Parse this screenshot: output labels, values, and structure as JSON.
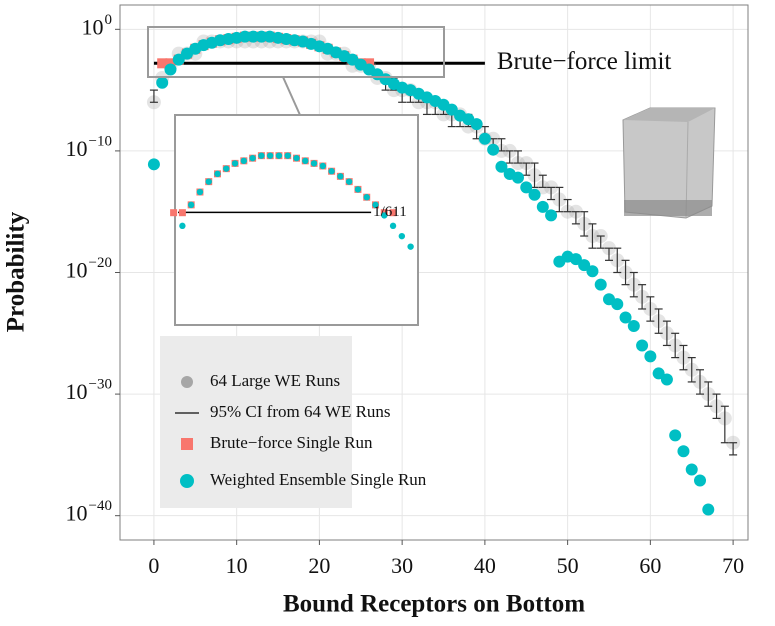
{
  "chart_data": [
    {
      "type": "scatter",
      "xlabel": "Bound Receptors on Bottom",
      "ylabel": "Probability",
      "log_y": true,
      "grid": true,
      "legend": "bottom-left",
      "xlim": [
        -4.1,
        71.8
      ],
      "ylim": [
        1e-42,
        100
      ],
      "xticks": [
        0,
        10,
        20,
        30,
        40,
        50,
        60,
        70
      ],
      "yticks": [
        {
          "value": 1,
          "label": "10",
          "sup": "0"
        },
        {
          "value": 1e-10,
          "label": "10",
          "sup": "−10"
        },
        {
          "value": 1e-20,
          "label": "10",
          "sup": "−20"
        },
        {
          "value": 1e-30,
          "label": "10",
          "sup": "−30"
        },
        {
          "value": 1e-40,
          "label": "10",
          "sup": "−40"
        }
      ],
      "series": [
        {
          "name": "64 Large WE Runs",
          "kind": "cloud",
          "color": "#a6a6a6",
          "x": [
            0,
            1,
            2,
            3,
            4,
            5,
            6,
            7,
            8,
            9,
            10,
            11,
            12,
            13,
            14,
            15,
            16,
            17,
            18,
            19,
            20,
            21,
            22,
            23,
            24,
            25,
            26,
            27,
            28,
            29,
            30,
            31,
            32,
            33,
            34,
            35,
            36,
            37,
            38,
            39,
            40,
            41,
            42,
            43,
            44,
            45,
            46,
            47,
            48,
            49,
            50,
            51,
            52,
            53,
            54,
            55,
            56,
            57,
            58,
            59,
            60,
            61,
            62,
            63,
            64,
            65,
            66,
            67,
            68,
            69,
            70
          ],
          "values": [
            1e-06,
            0.0001,
            0.001,
            0.01,
            0.01,
            0.01,
            0.1,
            0.1,
            0.1,
            0.1,
            0.1,
            0.1,
            0.1,
            0.1,
            0.1,
            0.1,
            0.1,
            0.1,
            0.1,
            0.1,
            0.1,
            0.01,
            0.01,
            0.01,
            0.001,
            0.001,
            0.001,
            0.0001,
            0.0001,
            1e-05,
            1e-05,
            1e-05,
            1e-06,
            1e-06,
            1e-06,
            1e-07,
            1e-07,
            1e-07,
            1e-08,
            1e-08,
            1e-09,
            1e-09,
            1e-10,
            1e-10,
            1e-11,
            1e-11,
            1e-12,
            1e-13,
            1e-13,
            1e-14,
            1e-15,
            1e-15,
            1e-16,
            1e-17,
            1e-17,
            1e-18,
            1e-19,
            1e-20,
            1e-21,
            1e-22,
            1e-23,
            1e-24,
            1e-25,
            1e-26,
            1e-27,
            1e-28,
            1e-29,
            1e-30,
            1e-31,
            1e-32,
            1e-34
          ]
        },
        {
          "name": "95% CI from 64 WE Runs",
          "kind": "errorbar",
          "color": "#333333",
          "x": [
            0,
            28,
            29,
            30,
            31,
            32,
            33,
            34,
            35,
            36,
            37,
            38,
            39,
            40,
            41,
            42,
            43,
            44,
            45,
            46,
            47,
            48,
            49,
            50,
            51,
            52,
            53,
            54,
            55,
            56,
            57,
            58,
            59,
            60,
            61,
            62,
            63,
            64,
            65,
            66,
            67,
            68,
            69,
            70
          ],
          "low": [
            1e-06,
            1e-05,
            1e-05,
            1e-06,
            1e-06,
            1e-06,
            1e-07,
            1e-07,
            1e-07,
            1e-08,
            1e-08,
            1e-08,
            1e-09,
            1e-09,
            1e-10,
            1e-10,
            1e-11,
            1e-11,
            1e-12,
            1e-13,
            1e-13,
            1e-14,
            1e-15,
            1e-15,
            1e-16,
            1e-17,
            1e-18,
            1e-18,
            1e-19,
            1e-20,
            1e-21,
            1e-22,
            1e-23,
            1e-24,
            1e-25,
            1e-26,
            1e-27,
            1e-28,
            1e-29,
            1e-30,
            1e-31,
            1e-32,
            1e-34,
            1e-35
          ],
          "high": [
            1e-05,
            0.0001,
            0.0001,
            1e-05,
            1e-05,
            1e-05,
            1e-06,
            1e-06,
            1e-06,
            1e-07,
            1e-07,
            1e-07,
            1e-08,
            1e-08,
            1e-09,
            1e-09,
            1e-10,
            1e-10,
            1e-11,
            1e-11,
            1e-12,
            1e-13,
            1e-13,
            1e-14,
            1e-15,
            1e-15,
            1e-16,
            1e-17,
            1e-18,
            1e-18,
            1e-19,
            1e-20,
            1e-21,
            1e-22,
            1e-23,
            1e-24,
            1e-25,
            1e-26,
            1e-27,
            1e-28,
            1e-29,
            1e-30,
            1e-31,
            1e-34
          ]
        },
        {
          "name": "Brute−force Single Run",
          "kind": "square",
          "color": "#f8766d",
          "x": [
            1,
            2,
            3,
            4,
            5,
            6,
            7,
            8,
            9,
            10,
            11,
            12,
            13,
            14,
            15,
            16,
            17,
            18,
            19,
            20,
            21,
            22,
            23,
            24,
            25,
            26
          ],
          "values": [
            0.0016,
            0.0016,
            0.0032,
            0.01,
            0.025,
            0.05,
            0.079,
            0.126,
            0.158,
            0.2,
            0.25,
            0.25,
            0.25,
            0.25,
            0.2,
            0.158,
            0.126,
            0.1,
            0.063,
            0.04,
            0.025,
            0.0126,
            0.0063,
            0.0032,
            0.0016,
            0.0016
          ]
        },
        {
          "name": "Weighted Ensemble Single Run",
          "kind": "circle",
          "color": "#00bfc4",
          "x": [
            0,
            1,
            2,
            3,
            4,
            5,
            6,
            7,
            8,
            9,
            10,
            11,
            12,
            13,
            14,
            15,
            16,
            17,
            18,
            19,
            20,
            21,
            22,
            23,
            24,
            25,
            26,
            27,
            28,
            29,
            30,
            31,
            32,
            33,
            34,
            35,
            36,
            37,
            38,
            39,
            40,
            41,
            42,
            43,
            44,
            45,
            46,
            47,
            48,
            49,
            50,
            51,
            52,
            53,
            54,
            55,
            56,
            57,
            58,
            59,
            60,
            61,
            62,
            63,
            64,
            65,
            66,
            67
          ],
          "values": [
            7.9e-12,
            4e-05,
            0.0005,
            0.0032,
            0.01,
            0.025,
            0.05,
            0.079,
            0.126,
            0.158,
            0.2,
            0.25,
            0.25,
            0.25,
            0.25,
            0.2,
            0.158,
            0.126,
            0.1,
            0.063,
            0.04,
            0.025,
            0.0126,
            0.0063,
            0.0032,
            0.00126,
            0.0005,
            0.0002,
            7.9e-05,
            3.2e-05,
            1.6e-05,
            1e-05,
            5e-06,
            2.5e-06,
            1.26e-06,
            6.3e-07,
            2.5e-07,
            7.9e-08,
            4e-08,
            1.6e-08,
            1e-09,
            1.26e-10,
            5e-12,
            1.26e-12,
            6.3e-13,
            1e-13,
            2.5e-14,
            2.5e-15,
            5e-16,
            7.9e-20,
            2e-19,
            1.26e-19,
            4e-20,
            1.26e-20,
            1e-21,
            6.3e-23,
            2.5e-23,
            2e-24,
            4e-25,
            1e-26,
            1.26e-27,
            5e-29,
            1.6e-29,
            4e-34,
            2e-35,
            6.3e-37,
            7.9e-38,
            3.2e-40
          ]
        }
      ],
      "limit_line": {
        "value": 0.0016367,
        "label": "Brute−force limit",
        "x": [
          0,
          40
        ]
      }
    },
    {
      "type": "scatter",
      "log_y": true,
      "xlim": [
        1.5,
        28.5
      ],
      "ylim": [
        1e-07,
        1
      ],
      "series": [
        {
          "kind": "square",
          "color": "#f8766d",
          "x": [
            1,
            2,
            3,
            4,
            5,
            6,
            7,
            8,
            9,
            10,
            11,
            12,
            13,
            14,
            15,
            16,
            17,
            18,
            19,
            20,
            21,
            22,
            23,
            24,
            25,
            26
          ],
          "values": [
            0.0016,
            0.0016,
            0.0032,
            0.01,
            0.025,
            0.05,
            0.079,
            0.126,
            0.158,
            0.2,
            0.25,
            0.25,
            0.25,
            0.25,
            0.2,
            0.158,
            0.126,
            0.1,
            0.063,
            0.04,
            0.025,
            0.0126,
            0.0063,
            0.0032,
            0.0016,
            0.0016
          ]
        },
        {
          "kind": "circle",
          "color": "#00bfc4",
          "x": [
            2,
            3,
            4,
            5,
            6,
            7,
            8,
            9,
            10,
            11,
            12,
            13,
            14,
            15,
            16,
            17,
            18,
            19,
            20,
            21,
            22,
            23,
            24,
            25,
            26,
            27,
            28
          ],
          "values": [
            0.0005,
            0.0032,
            0.01,
            0.025,
            0.05,
            0.079,
            0.126,
            0.158,
            0.2,
            0.25,
            0.25,
            0.25,
            0.25,
            0.2,
            0.158,
            0.126,
            0.1,
            0.063,
            0.04,
            0.025,
            0.0126,
            0.0063,
            0.0032,
            0.00126,
            0.0005,
            0.0002,
            7.9e-05
          ]
        }
      ],
      "limit_line": {
        "value": 0.0016367,
        "label": "1/611",
        "x": [
          1.5,
          23.5
        ]
      }
    }
  ]
}
